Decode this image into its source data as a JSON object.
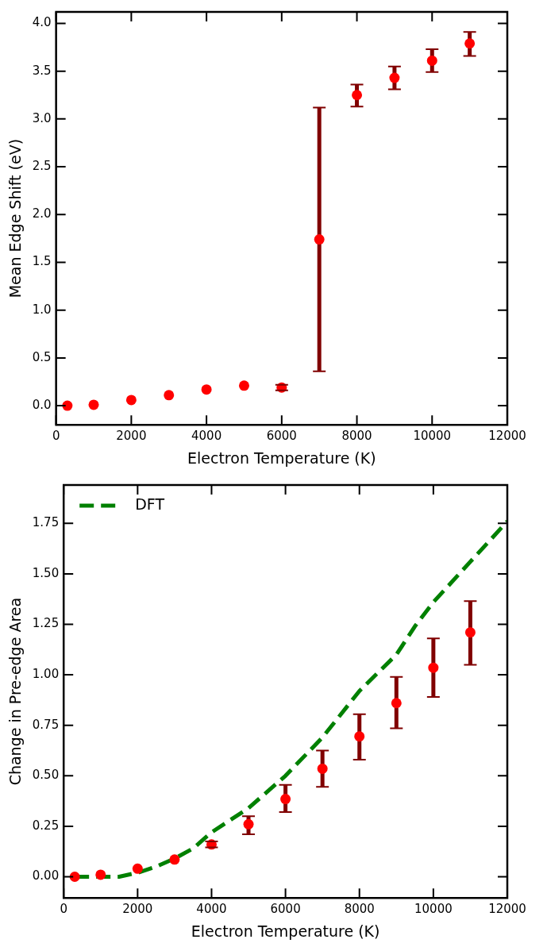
{
  "chart_data": [
    {
      "type": "scatter",
      "xlabel": "Electron Temperature (K)",
      "ylabel": "Mean Edge Shift (eV)",
      "xlim": [
        0,
        12000
      ],
      "xticks": [
        0,
        2000,
        4000,
        6000,
        8000,
        10000,
        12000
      ],
      "ylim": [
        -0.2,
        4.12
      ],
      "yticks": [
        {
          "value": 0,
          "label": "0.0"
        },
        {
          "value": 0.5,
          "label": "0.5"
        },
        {
          "value": 1,
          "label": "1.0"
        },
        {
          "value": 1.5,
          "label": "1.5"
        },
        {
          "value": 2,
          "label": "2.0"
        },
        {
          "value": 2.5,
          "label": "2.5"
        },
        {
          "value": 3,
          "label": "3.0"
        },
        {
          "value": 3.5,
          "label": "3.5"
        },
        {
          "value": 4,
          "label": "4.0"
        }
      ],
      "marker": "circle",
      "series": [
        {
          "color": "#ff0000",
          "x": [
            300,
            1000,
            2000,
            3000,
            4000,
            5000,
            6000,
            7000,
            8000,
            9000,
            10000,
            11000
          ],
          "values": [
            0,
            0.01,
            0.06,
            0.11,
            0.17,
            0.21,
            0.19,
            1.74,
            3.25,
            3.43,
            3.61,
            3.79
          ],
          "errors": [
            null,
            null,
            null,
            null,
            null,
            null,
            [
              0.16,
              0.22
            ],
            [
              0.36,
              3.12
            ],
            [
              3.13,
              3.36
            ],
            [
              3.31,
              3.55
            ],
            [
              3.49,
              3.73
            ],
            [
              3.66,
              3.91
            ]
          ]
        }
      ]
    },
    {
      "type": "scatter",
      "xlabel": "Electron Temperature (K)",
      "ylabel": "Change in Pre-edge Area",
      "xlim": [
        0,
        12000
      ],
      "xticks": [
        0,
        2000,
        4000,
        6000,
        8000,
        10000,
        12000
      ],
      "ylim": [
        -0.105,
        1.94
      ],
      "yticks": [
        {
          "value": 0,
          "label": "0.00"
        },
        {
          "value": 0.25,
          "label": "0.25"
        },
        {
          "value": 0.5,
          "label": "0.50"
        },
        {
          "value": 0.75,
          "label": "0.75"
        },
        {
          "value": 1,
          "label": "1.00"
        },
        {
          "value": 1.25,
          "label": "1.25"
        },
        {
          "value": 1.5,
          "label": "1.50"
        },
        {
          "value": 1.75,
          "label": "1.75"
        }
      ],
      "legend": "top left",
      "series": [
        {
          "name": "DFT",
          "type": "line",
          "line_style": "dashed",
          "color": "#008000",
          "x": [
            300,
            1000,
            1500,
            2000,
            2500,
            3000,
            3500,
            4000,
            5000,
            6000,
            7000,
            8000,
            9000,
            9500,
            10000,
            11000,
            12000
          ],
          "values": [
            0,
            0,
            0,
            0.02,
            0.05,
            0.09,
            0.14,
            0.22,
            0.34,
            0.5,
            0.69,
            0.92,
            1.1,
            1.24,
            1.36,
            1.56,
            1.76
          ]
        },
        {
          "color": "#ff0000",
          "marker": "circle",
          "x": [
            300,
            1000,
            2000,
            3000,
            4000,
            5000,
            6000,
            7000,
            8000,
            9000,
            10000,
            11000
          ],
          "values": [
            0,
            0.01,
            0.04,
            0.085,
            0.16,
            0.26,
            0.385,
            0.535,
            0.695,
            0.86,
            1.035,
            1.21
          ],
          "errors": [
            null,
            null,
            null,
            null,
            [
              0.145,
              0.175
            ],
            [
              0.21,
              0.3
            ],
            [
              0.32,
              0.455
            ],
            [
              0.445,
              0.625
            ],
            [
              0.58,
              0.805
            ],
            [
              0.735,
              0.99
            ],
            [
              0.89,
              1.18
            ],
            [
              1.05,
              1.365
            ]
          ]
        }
      ]
    }
  ]
}
